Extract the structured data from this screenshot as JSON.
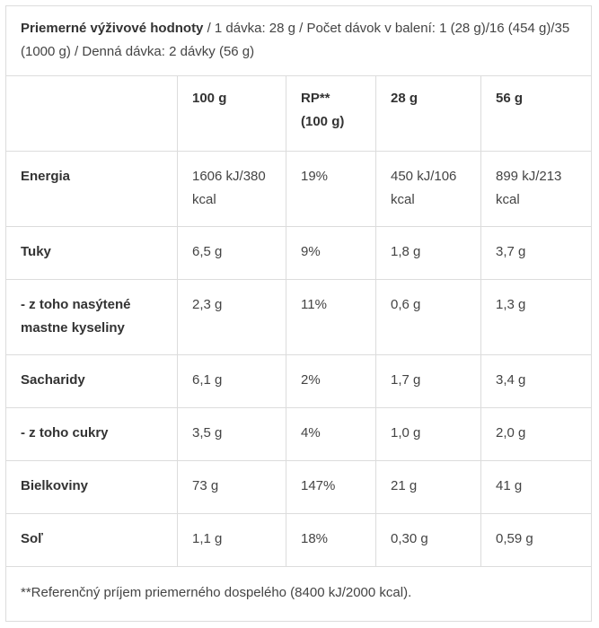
{
  "caption": {
    "bold": "Priemerné výživové hodnoty",
    "rest": " / 1 dávka: 28 g / Počet dávok v balení: 1 (28 g)/16 (454 g)/35 (1000 g) / Denná dávka: 2 dávky (56 g)"
  },
  "headers": [
    "",
    "100 g",
    "RP** (100 g)",
    "28 g",
    "56 g"
  ],
  "rows": [
    {
      "label": "Energia",
      "values": [
        "1606 kJ/380 kcal",
        "19%",
        "450 kJ/106 kcal",
        "899 kJ/213 kcal"
      ]
    },
    {
      "label": "Tuky",
      "values": [
        "6,5 g",
        "9%",
        "1,8 g",
        "3,7 g"
      ]
    },
    {
      "label": "- z toho nasýtené mastne kyseliny",
      "values": [
        "2,3 g",
        "11%",
        "0,6 g",
        "1,3 g"
      ]
    },
    {
      "label": "Sacharidy",
      "values": [
        "6,1 g",
        "2%",
        "1,7 g",
        "3,4 g"
      ]
    },
    {
      "label": "- z toho cukry",
      "values": [
        "3,5 g",
        "4%",
        "1,0 g",
        "2,0 g"
      ]
    },
    {
      "label": "Bielkoviny",
      "values": [
        "73 g",
        "147%",
        "21 g",
        "41 g"
      ]
    },
    {
      "label": "Soľ",
      "values": [
        "1,1 g",
        "18%",
        "0,30 g",
        "0,59 g"
      ]
    }
  ],
  "footnote": "**Referenčný príjem priemerného dospelého (8400 kJ/2000 kcal)."
}
